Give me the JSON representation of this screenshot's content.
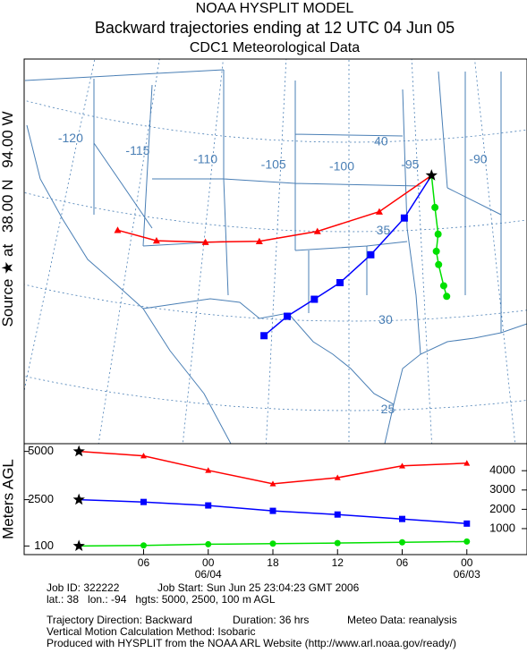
{
  "title": "NOAA HYSPLIT MODEL",
  "subtitle": "Backward trajectories ending at 12 UTC 04 Jun 05",
  "data_source": "CDC1 Meteorological Data",
  "source_label": {
    "prefix": "Source ★ at",
    "lat": "38.00 N",
    "lon": "94.00 W"
  },
  "chart_data": [
    {
      "type": "trajectory-map",
      "lon_lines": [
        -120,
        -115,
        -110,
        -105,
        -100,
        -95,
        -90
      ],
      "lat_lines": [
        25,
        30,
        35,
        40
      ],
      "series": [
        {
          "color": "#ff0000",
          "marker": "triangle",
          "lon": [
            -94,
            -97.85,
            -102.2,
            -106.2,
            -109.9,
            -113.25,
            -116.0
          ],
          "lat": [
            38,
            36.1,
            35.0,
            34.3,
            34.0,
            33.75,
            34.0
          ]
        },
        {
          "color": "#0000ff",
          "marker": "square",
          "lon": [
            -94,
            -96.1,
            -98.5,
            -100.6,
            -102.3,
            -104.05,
            -105.5
          ],
          "lat": [
            38,
            35.7,
            33.7,
            32.15,
            31.2,
            30.2,
            29.05
          ]
        },
        {
          "color": "#00e000",
          "marker": "circle",
          "lon": [
            -94,
            -93.9,
            -93.8,
            -94.0,
            -93.9,
            -93.65,
            -93.5
          ],
          "lat": [
            38,
            36.2,
            34.7,
            33.75,
            33.0,
            31.8,
            31.2
          ]
        }
      ]
    },
    {
      "type": "line",
      "y_label": "Meters AGL",
      "x": [
        0,
        6,
        12,
        18,
        24,
        30,
        36
      ],
      "xlim": [
        -5,
        41.5
      ],
      "xticks": [
        {
          "value": 6,
          "label": "06"
        },
        {
          "value": 12,
          "label": "00"
        },
        {
          "value": 18,
          "label": "18"
        },
        {
          "value": 24,
          "label": "12"
        },
        {
          "value": 30,
          "label": "06"
        },
        {
          "value": 36,
          "label": "00"
        }
      ],
      "x_date_labels": [
        {
          "value": 12,
          "label": "06/04"
        },
        {
          "value": 36,
          "label": "06/03"
        }
      ],
      "ylim": [
        -300,
        5400
      ],
      "yticks": [
        100,
        2500,
        5000
      ],
      "y2lim": [
        -300,
        5400
      ],
      "y2ticks": [
        1000,
        2000,
        3000,
        4000
      ],
      "series": [
        {
          "color": "#ff0000",
          "marker": "triangle",
          "values": [
            5000,
            4770,
            4020,
            3320,
            3640,
            4250,
            4390
          ]
        },
        {
          "color": "#0000ff",
          "marker": "square",
          "values": [
            2500,
            2380,
            2200,
            1920,
            1730,
            1500,
            1260
          ]
        },
        {
          "color": "#00e000",
          "marker": "circle",
          "values": [
            100,
            130,
            190,
            220,
            250,
            290,
            330
          ]
        }
      ]
    }
  ],
  "footer": {
    "job_id": "Job ID: 322222",
    "job_start": "Job Start: Sun Jun 25 23:04:23 GMT 2006",
    "params": "lat.: 38   lon.: -94   hgts: 5000, 2500, 100 m AGL",
    "direction": "Trajectory Direction: Backward",
    "duration": "Duration: 36 hrs",
    "meteo": "Meteo Data: reanalysis",
    "vertical": "Vertical Motion Calculation Method: Isobaric",
    "produced": "Produced with HYSPLIT from the NOAA ARL Website (http://www.arl.noaa.gov/ready/)"
  }
}
